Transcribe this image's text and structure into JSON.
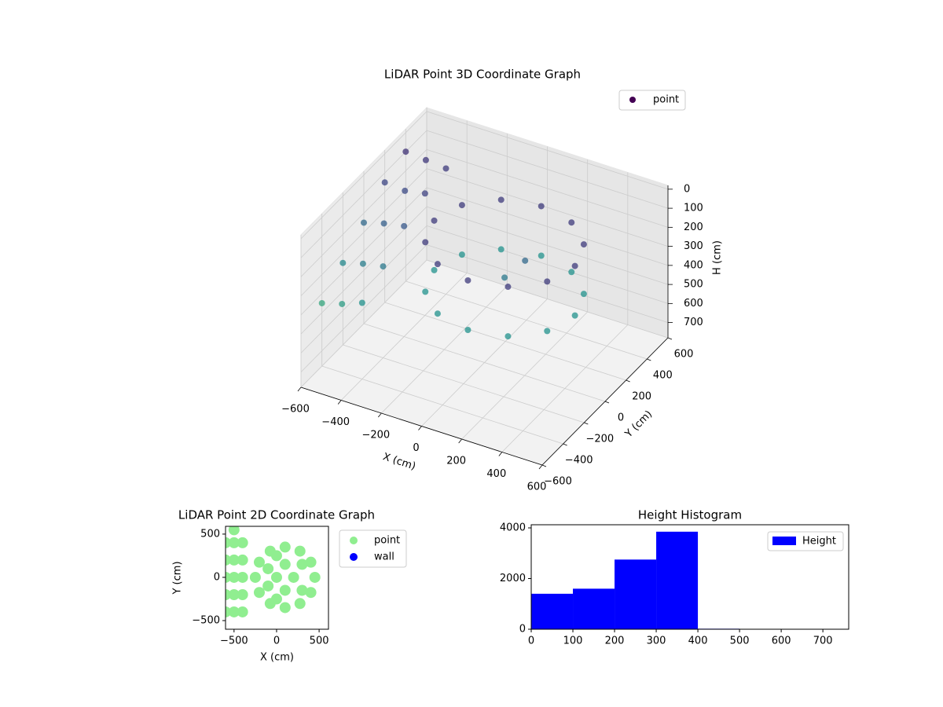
{
  "chart_data": [
    {
      "type": "scatter3d",
      "title": "LiDAR Point 3D Coordinate Graph",
      "xlabel": "X (cm)",
      "ylabel": "Y (cm)",
      "zlabel": "H (cm)",
      "xlim": [
        -600,
        600
      ],
      "ylim": [
        -600,
        600
      ],
      "zlim": [
        -20,
        780
      ],
      "z_inverted": true,
      "xticks": [
        {
          "value": -600,
          "label": "−600"
        },
        {
          "value": -400,
          "label": "−400"
        },
        {
          "value": -200,
          "label": "−200"
        },
        0,
        200,
        400,
        600
      ],
      "yticks": [
        {
          "value": -600,
          "label": "−600"
        },
        {
          "value": -400,
          "label": "−400"
        },
        {
          "value": -200,
          "label": "−200"
        },
        0,
        200,
        400,
        600
      ],
      "zticks": [
        0,
        100,
        200,
        300,
        400,
        500,
        600,
        700
      ],
      "colormap": "viridis",
      "legend": "upper right",
      "grid": true,
      "series": [
        {
          "name": "point",
          "color": "#440154",
          "x": [
            450,
            403,
            275,
            100,
            -75,
            -203,
            -250,
            -203,
            -75,
            100,
            275,
            403,
            450,
            403,
            275,
            100,
            -75,
            -203,
            -250,
            -203,
            -75,
            100,
            275,
            403,
            100,
            150,
            -600,
            -600,
            -600,
            -600,
            -600,
            -500,
            -500,
            -500,
            -500,
            -500,
            -400,
            -400,
            -400,
            -400,
            -400
          ],
          "y": [
            0,
            175,
            303,
            350,
            303,
            175,
            0,
            -175,
            -303,
            -350,
            -303,
            -175,
            0,
            175,
            303,
            350,
            303,
            175,
            0,
            -175,
            -303,
            -350,
            -303,
            -175,
            0,
            100,
            -400,
            -200,
            0,
            200,
            400,
            -400,
            -200,
            0,
            200,
            400,
            -400,
            -200,
            0,
            200,
            400
          ],
          "h": [
            120,
            120,
            120,
            120,
            120,
            120,
            120,
            120,
            120,
            120,
            120,
            120,
            380,
            380,
            380,
            380,
            380,
            380,
            380,
            380,
            380,
            380,
            380,
            380,
            300,
            250,
            450,
            350,
            250,
            150,
            100,
            420,
            320,
            220,
            160,
            110,
            380,
            300,
            200,
            140,
            120
          ]
        }
      ]
    },
    {
      "type": "scatter",
      "title": "LiDAR Point 2D Coordinate Graph",
      "xlabel": "X (cm)",
      "ylabel": "Y (cm)",
      "xlim": [
        -600,
        610
      ],
      "ylim": [
        -600,
        590
      ],
      "xticks": [
        {
          "value": -500,
          "label": "−500"
        },
        0,
        500
      ],
      "yticks": [
        {
          "value": -500,
          "label": "−500"
        },
        0,
        500
      ],
      "legend": "outside right",
      "series": [
        {
          "name": "point",
          "color": "#90ee90",
          "x": [
            450,
            403,
            275,
            100,
            -75,
            -203,
            -250,
            -203,
            -75,
            100,
            275,
            403,
            0,
            200,
            100,
            100,
            -100,
            -100,
            300,
            300,
            0,
            0,
            -600,
            -600,
            -600,
            -600,
            -600,
            -500,
            -500,
            -500,
            -500,
            -500,
            -400,
            -400,
            -400,
            -400,
            -400,
            -500
          ],
          "y": [
            0,
            175,
            303,
            350,
            303,
            175,
            0,
            -175,
            -303,
            -350,
            -303,
            -175,
            0,
            0,
            150,
            -150,
            100,
            -100,
            150,
            -150,
            250,
            -250,
            -400,
            -200,
            0,
            200,
            400,
            -400,
            -200,
            0,
            200,
            400,
            -400,
            -200,
            0,
            200,
            400,
            550
          ]
        },
        {
          "name": "wall",
          "color": "#0000ff",
          "x": [],
          "y": []
        }
      ]
    },
    {
      "type": "histogram",
      "title": "Height Histogram",
      "bins": [
        0,
        100,
        200,
        300,
        400,
        500,
        600,
        700,
        800
      ],
      "counts": [
        1400,
        1600,
        2750,
        3850,
        20,
        0,
        0,
        0
      ],
      "series_name": "Height",
      "color": "#0000ff",
      "xlim": [
        0,
        762
      ],
      "ylim": [
        0,
        4124
      ],
      "xticks": [
        0,
        100,
        200,
        300,
        400,
        500,
        600,
        700
      ],
      "yticks": [
        0,
        2000,
        4000
      ],
      "legend": "upper right"
    }
  ]
}
